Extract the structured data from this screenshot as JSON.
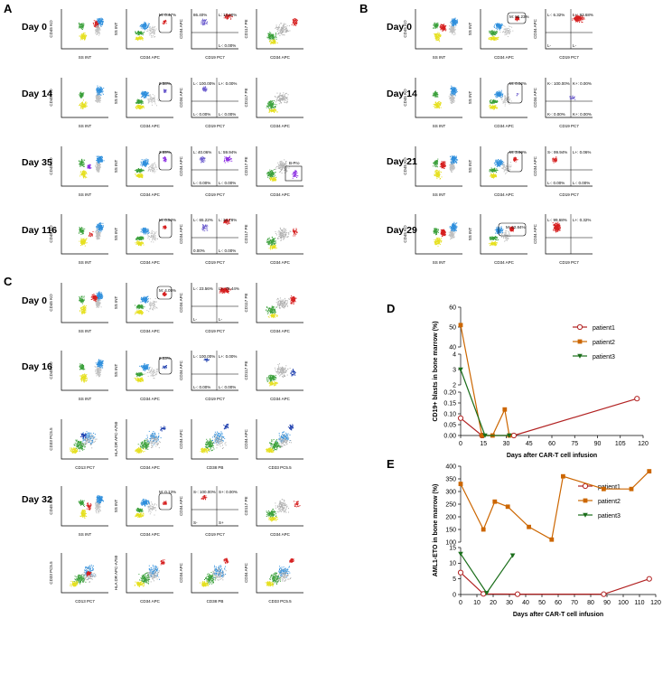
{
  "panels": {
    "A": {
      "letter": "A",
      "days": [
        "Day 0",
        "Day 14",
        "Day 35",
        "Day 116"
      ],
      "rows": [
        {
          "gates": [
            "M: 0.47%",
            "86.40%",
            "L: 13.60%",
            "L-: 0.00%"
          ],
          "xlabels": [
            "SS INT",
            "CD34 APC",
            "CD19 PC7",
            "CD34 APC"
          ],
          "ylabels": [
            "CD45 KO",
            "SS INT",
            "CD34 APC",
            "CD117 PE"
          ]
        },
        {
          "gates": [
            "0.58%",
            "L-: 100.00%",
            "L+: 0.00%",
            "L-: 0.00%",
            "L-: 0.00%"
          ],
          "xlabels": [
            "SS INT",
            "CD34 APC",
            "CD19 PC7",
            "CD34 APC"
          ],
          "ylabels": [
            "CD45 KO",
            "SS INT",
            "CD34 APC",
            "CD117 PE"
          ]
        },
        {
          "gates": [
            "3.69%",
            "L: 40.06%",
            "L: 59.94%",
            "L-: 0.00%",
            "L-: 0.00%",
            "B-Pro"
          ],
          "xlabels": [
            "SS INT",
            "CD34 APC",
            "CD19 PC7",
            "CD34 APC"
          ],
          "ylabels": [
            "CD45 KO",
            "SS INT",
            "CD34 APC",
            "CD117 PE"
          ]
        },
        {
          "gates": [
            "M: 0.53%",
            "L-: 65.22%",
            "L: 34.78%",
            "L-: 0.00%",
            "0.00%"
          ],
          "xlabels": [
            "SS INT",
            "CD34 APC",
            "CD19 PC7",
            "CD34 APC"
          ],
          "ylabels": [
            "CD45 KO",
            "SS INT",
            "CD34 APC",
            "CD117 PE"
          ]
        }
      ]
    },
    "B": {
      "letter": "B",
      "days": [
        "Day 0",
        "Day 14",
        "Day 21",
        "Day 29"
      ],
      "rows": [
        {
          "gates": [
            "M: 55.23%",
            "L-: 6.32%",
            "L+: 93.68%",
            "L-",
            "L-"
          ]
        },
        {
          "gates": [
            "M: 0.02%",
            "K-: 100.00%",
            "K+: 0.00%",
            "K-: 0.00%",
            "K+: 0.00%"
          ]
        },
        {
          "gates": [
            "M: 3.69%",
            "S-: 99.94%",
            "L+: 0.06%",
            "L-: 0.00%",
            "L-: 0.00%"
          ]
        },
        {
          "gates": [
            "M: 42.84%",
            "L-: 99.68%",
            "L+: 0.32%"
          ]
        }
      ],
      "xlabels": [
        "SS INT",
        "CD34 APC",
        "CD19 PC7"
      ],
      "ylabels": [
        "CD45 KO",
        "SS INT",
        "CD34 APC"
      ]
    },
    "C": {
      "letter": "C",
      "days": [
        "Day 0",
        "Day 16",
        "Day 32"
      ],
      "gates_day0": [
        "M: 4.05%",
        "L-: 23.56%",
        "L+: 76.44%",
        "L-",
        "L-"
      ],
      "gates_day16": [
        "0.03%",
        "L-: 100.00%",
        "L+: 0.00%",
        "L-: 0.00%",
        "L-: 0.00%"
      ],
      "gates_day32": [
        "M: 0.13%",
        "S-: 100.00%",
        "S+: 0.00%",
        "S-",
        "S+"
      ],
      "xlabels_main": [
        "SS INT",
        "CD34 APC",
        "CD19 PC7",
        "CD34 APC"
      ],
      "ylabels_main": [
        "CD45 KO",
        "SS INT",
        "CD34 APC",
        "CD117 PE"
      ],
      "xlabels_extra": [
        "CD13 PC7",
        "CD34 APC",
        "CD38 PB",
        "CD33 PC5.5"
      ],
      "ylabels_extra": [
        "CD33 PC5.5",
        "HLA DR APC-A750",
        "CD34 APC",
        "CD34 APC"
      ]
    },
    "D": {
      "letter": "D"
    },
    "E": {
      "letter": "E"
    }
  },
  "chart_data": [
    {
      "type": "line",
      "panel": "D",
      "title": "",
      "xlabel": "Days after CAR-T cell infusion",
      "ylabel": "CD19+ blasts in bone marrow (%)",
      "x_ticks": [
        0,
        15,
        30,
        45,
        60,
        75,
        90,
        105,
        120
      ],
      "y_ticks_upper": [
        40,
        50,
        60
      ],
      "y_ticks_mid": [
        2,
        3,
        4
      ],
      "y_ticks_lower": [
        0.0,
        0.05,
        0.1,
        0.15,
        0.2
      ],
      "y_tick_labels": [
        "0.00",
        "0.05",
        "0.10",
        "0.15",
        "0.20",
        "2",
        "3",
        "4",
        "40",
        "50",
        "60"
      ],
      "series": [
        {
          "name": "patient1",
          "color": "#b22222",
          "marker": "circle",
          "x": [
            0,
            14,
            35,
            116
          ],
          "y": [
            0.08,
            0.0,
            0.0,
            0.17
          ]
        },
        {
          "name": "patient2",
          "color": "#cc6600",
          "marker": "square",
          "x": [
            0,
            14,
            21,
            29,
            32
          ],
          "y": [
            51,
            0.0,
            0.0,
            0.12,
            0.0
          ]
        },
        {
          "name": "patient3",
          "color": "#1a6e1a",
          "marker": "triangle",
          "x": [
            0,
            16,
            32
          ],
          "y": [
            3,
            0.0,
            0.0
          ]
        }
      ]
    },
    {
      "type": "line",
      "panel": "E",
      "title": "",
      "xlabel": "Days after CAR-T cell infusion",
      "ylabel": "AML1-ETO in bone marrow (%)",
      "x_ticks": [
        0,
        10,
        20,
        30,
        40,
        50,
        60,
        70,
        80,
        90,
        100,
        110,
        120
      ],
      "y_ticks_upper": [
        100,
        150,
        200,
        250,
        300,
        350,
        400
      ],
      "y_ticks_lower": [
        0,
        5,
        10,
        15
      ],
      "series": [
        {
          "name": "patient1",
          "color": "#b22222",
          "marker": "circle",
          "x": [
            0,
            14,
            35,
            88,
            116
          ],
          "y": [
            7,
            0.2,
            0.1,
            0.1,
            5
          ]
        },
        {
          "name": "patient2",
          "color": "#cc6600",
          "marker": "square",
          "x": [
            0,
            14,
            21,
            29,
            42,
            56,
            63,
            88,
            105,
            116
          ],
          "y": [
            330,
            150,
            260,
            240,
            160,
            110,
            360,
            310,
            310,
            380
          ]
        },
        {
          "name": "patient3",
          "color": "#1a6e1a",
          "marker": "triangle",
          "x": [
            0,
            16,
            32
          ],
          "y": [
            13,
            0.5,
            12.5
          ]
        }
      ]
    }
  ]
}
